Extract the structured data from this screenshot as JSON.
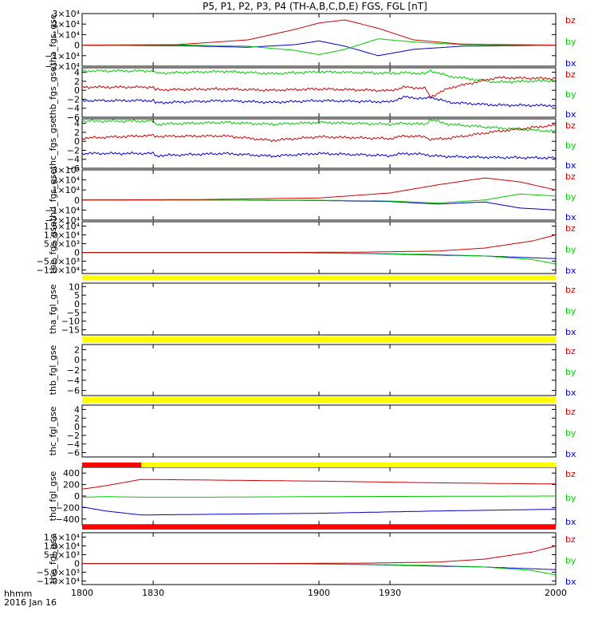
{
  "title": "P5, P1, P2, P3, P4 (TH-A,B,C,D,E) FGS, FGL [nT]",
  "footer": {
    "line1": "hhmm",
    "line2": "2016 Jan 16"
  },
  "colors": {
    "bz": "#cc0000",
    "by": "#00cc00",
    "bx": "#0000cc",
    "bar_yellow": "#ffff00",
    "bar_red": "#ff0000"
  },
  "chart_data": [
    {
      "type": "line",
      "panel": "tha_fgs_gse",
      "ylabel": "tha_fgs_gse",
      "ylim": [
        -20000,
        30000
      ],
      "yticks": [
        "3×10⁴",
        "2×10⁴",
        "1×10⁴",
        "0",
        "−1×10⁴",
        "−2×10⁴"
      ],
      "ytick_values": [
        30000,
        20000,
        10000,
        0,
        -10000,
        -20000
      ],
      "x": [
        1800,
        1840,
        1870,
        1890,
        1900,
        1911,
        1925,
        1940,
        1960,
        2000
      ],
      "series": [
        {
          "name": "bz",
          "values": [
            0,
            500,
            5000,
            15000,
            21000,
            24000,
            16000,
            5000,
            1000,
            0
          ]
        },
        {
          "name": "by",
          "values": [
            0,
            200,
            -1000,
            -5000,
            -9000,
            -4000,
            6000,
            3000,
            500,
            0
          ]
        },
        {
          "name": "bx",
          "values": [
            0,
            -500,
            -2000,
            500,
            4000,
            -1000,
            -10000,
            -4000,
            -1000,
            0
          ]
        }
      ]
    },
    {
      "type": "line",
      "panel": "thb_fgs_gse",
      "ylabel": "thb_fgs_gse",
      "ylim": [
        -6,
        5
      ],
      "yticks": [
        "4",
        "2",
        "0",
        "−2",
        "−4",
        "−6"
      ],
      "ytick_values": [
        4,
        2,
        0,
        -2,
        -4,
        -6
      ],
      "x": [
        1800,
        1830,
        1831,
        1860,
        1880,
        1900,
        1930,
        1936,
        1945,
        1947,
        1955,
        1975,
        2000
      ],
      "series": [
        {
          "name": "bz",
          "values": [
            0.7,
            0.7,
            0.1,
            0.3,
            0.0,
            0.3,
            -0.1,
            0.7,
            0.4,
            -1.5,
            0.5,
            2.8,
            2.6
          ]
        },
        {
          "name": "by",
          "values": [
            4.3,
            4.3,
            3.8,
            4.2,
            3.7,
            4.1,
            3.8,
            3.9,
            3.7,
            4.4,
            3.1,
            1.8,
            2.2
          ]
        },
        {
          "name": "bx",
          "values": [
            -2.3,
            -2.3,
            -2.8,
            -2.3,
            -2.7,
            -2.3,
            -2.6,
            -1.5,
            -1.9,
            -1.5,
            -2.7,
            -3.3,
            -3.4
          ]
        }
      ]
    },
    {
      "type": "line",
      "panel": "thc_fgs_gse",
      "ylabel": "thc_fgs_gse",
      "ylim": [
        -6,
        5
      ],
      "yticks": [
        "4",
        "2",
        "0",
        "−2",
        "−4",
        "−6"
      ],
      "ytick_values": [
        4,
        2,
        0,
        -2,
        -4,
        -6
      ],
      "x": [
        1800,
        1830,
        1831,
        1860,
        1880,
        1900,
        1930,
        1936,
        1945,
        1947,
        1955,
        1975,
        2000
      ],
      "series": [
        {
          "name": "bz",
          "values": [
            0.7,
            1.3,
            1.1,
            1.2,
            0.2,
            1.0,
            0.6,
            1.2,
            1.0,
            0.4,
            0.7,
            2.2,
            3.6
          ]
        },
        {
          "name": "by",
          "values": [
            4.5,
            4.5,
            3.8,
            4.2,
            3.8,
            4.2,
            3.8,
            4.0,
            3.8,
            4.8,
            3.8,
            3.0,
            2.2
          ]
        },
        {
          "name": "bx",
          "values": [
            -2.7,
            -2.7,
            -3.2,
            -2.7,
            -3.3,
            -2.7,
            -3.2,
            -2.7,
            -2.9,
            -3.2,
            -3.4,
            -3.6,
            -3.7
          ]
        }
      ]
    },
    {
      "type": "line",
      "panel": "thd_fgs_gse",
      "ylabel": "thd_fgs_gse",
      "ylim": [
        -20000,
        30000
      ],
      "yticks": [
        "3×10⁴",
        "2×10⁴",
        "1×10⁴",
        "0",
        "−1×10⁴",
        "−2×10⁴"
      ],
      "ytick_values": [
        30000,
        20000,
        10000,
        0,
        -10000,
        -20000
      ],
      "x": [
        1800,
        1850,
        1900,
        1930,
        1950,
        1970,
        1985,
        2000
      ],
      "series": [
        {
          "name": "bz",
          "values": [
            0,
            500,
            2000,
            7000,
            15000,
            22000,
            18000,
            10000
          ]
        },
        {
          "name": "by",
          "values": [
            0,
            0,
            -200,
            -1000,
            -3000,
            0,
            6000,
            4000
          ]
        },
        {
          "name": "bx",
          "values": [
            0,
            0,
            -500,
            -1500,
            -4000,
            -2000,
            -8000,
            -10000
          ]
        }
      ]
    },
    {
      "type": "line",
      "panel": "the_fgs_gse",
      "ylabel": "the_fgs_gse",
      "ylim": [
        -12000,
        17500
      ],
      "yticks": [
        "1.5×10⁴",
        "1.0×10⁴",
        "5.0×10³",
        "0",
        "−5.0×10³",
        "−1.0×10⁴"
      ],
      "ytick_values": [
        15000,
        10000,
        5000,
        0,
        -5000,
        -10000
      ],
      "x": [
        1800,
        1880,
        1920,
        1950,
        1970,
        1990,
        2000
      ],
      "series": [
        {
          "name": "bz",
          "values": [
            0,
            0,
            200,
            800,
            2500,
            6500,
            10000
          ]
        },
        {
          "name": "by",
          "values": [
            0,
            0,
            -500,
            -1200,
            -2000,
            -4000,
            -6500
          ]
        },
        {
          "name": "bx",
          "values": [
            0,
            0,
            -600,
            -1500,
            -2000,
            -3000,
            -3500
          ]
        }
      ]
    },
    {
      "type": "line",
      "panel": "tha_fgl_gse",
      "ylabel": "tha_fgl_gse",
      "ylim": [
        -18,
        12
      ],
      "yticks": [
        "10",
        "5",
        "0",
        "−5",
        "−10",
        "−15"
      ],
      "ytick_values": [
        10,
        5,
        0,
        -5,
        -10,
        -15
      ],
      "series": []
    },
    {
      "type": "line",
      "panel": "thb_fgl_gse",
      "ylabel": "thb_fgl_gse",
      "ylim": [
        -7,
        3
      ],
      "yticks": [
        "2",
        "0",
        "−2",
        "−4",
        "−6"
      ],
      "ytick_values": [
        2,
        0,
        -2,
        -4,
        -6
      ],
      "series": []
    },
    {
      "type": "line",
      "panel": "thc_fgl_gse",
      "ylabel": "thc_fgl_gse",
      "ylim": [
        -7,
        5
      ],
      "yticks": [
        "4",
        "2",
        "0",
        "−2",
        "−4",
        "−6"
      ],
      "ytick_values": [
        4,
        2,
        0,
        -2,
        -4,
        -6
      ],
      "series": []
    },
    {
      "type": "line",
      "panel": "thd_fgl_gse",
      "ylabel": "thd_fgl_gse",
      "ylim": [
        -500,
        500
      ],
      "yticks": [
        "400",
        "200",
        "0",
        "−200",
        "−400"
      ],
      "ytick_values": [
        400,
        200,
        0,
        -200,
        -400
      ],
      "x": [
        1800,
        1810,
        1825,
        1850,
        1900,
        1950,
        2000
      ],
      "series": [
        {
          "name": "bz",
          "values": [
            120,
            180,
            290,
            280,
            260,
            230,
            210
          ]
        },
        {
          "name": "by",
          "values": [
            -20,
            -10,
            -20,
            -20,
            -10,
            -5,
            0
          ]
        },
        {
          "name": "bx",
          "values": [
            -190,
            -260,
            -330,
            -320,
            -300,
            -260,
            -230
          ]
        }
      ]
    },
    {
      "type": "line",
      "panel": "the_fgl_gse",
      "ylabel": "the_fgl_gse",
      "ylim": [
        -12000,
        17500
      ],
      "yticks": [
        "1.5×10⁴",
        "1.0×10⁴",
        "5.0×10³",
        "0",
        "−5.0×10³",
        "−1.0×10⁴"
      ],
      "ytick_values": [
        15000,
        10000,
        5000,
        0,
        -5000,
        -10000
      ],
      "x": [
        1800,
        1880,
        1920,
        1950,
        1970,
        1990,
        2000
      ],
      "series": [
        {
          "name": "bz",
          "values": [
            0,
            0,
            200,
            800,
            2500,
            6500,
            10000
          ]
        },
        {
          "name": "by",
          "values": [
            0,
            0,
            -500,
            -1200,
            -2000,
            -4000,
            -6500
          ]
        },
        {
          "name": "bx",
          "values": [
            0,
            0,
            -600,
            -1500,
            -2000,
            -3000,
            -3500
          ]
        }
      ]
    }
  ],
  "legend": [
    "bz",
    "by",
    "bx"
  ],
  "xaxis": {
    "xlim": [
      1800,
      2000
    ],
    "ticks": [
      1800,
      1830,
      1900,
      1930,
      2000
    ],
    "tick_labels": [
      "1800",
      "1830",
      "1900",
      "1930",
      "2000"
    ]
  },
  "status_bars": [
    {
      "after_panel": 4,
      "segments": [
        {
          "from": 1800,
          "to": 2000,
          "color": "yellow"
        }
      ]
    },
    {
      "after_panel": 5,
      "segments": [
        {
          "from": 1800,
          "to": 2000,
          "color": "yellow"
        }
      ]
    },
    {
      "after_panel": 6,
      "segments": [
        {
          "from": 1800,
          "to": 2000,
          "color": "yellow"
        }
      ]
    },
    {
      "after_panel": 7,
      "segments": [
        {
          "from": 1800,
          "to": 1825,
          "color": "red"
        },
        {
          "from": 1825,
          "to": 2000,
          "color": "yellow"
        }
      ]
    },
    {
      "after_panel": 8,
      "segments": [
        {
          "from": 1800,
          "to": 2000,
          "color": "red"
        }
      ]
    }
  ]
}
